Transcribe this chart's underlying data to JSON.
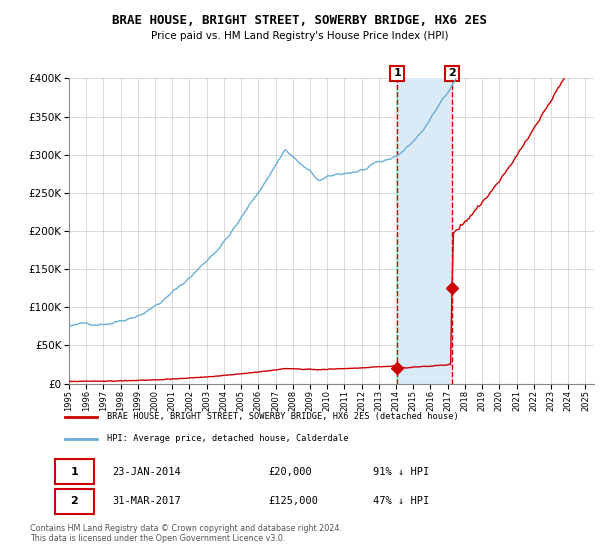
{
  "title": "BRAE HOUSE, BRIGHT STREET, SOWERBY BRIDGE, HX6 2ES",
  "subtitle": "Price paid vs. HM Land Registry's House Price Index (HPI)",
  "legend_line1": "BRAE HOUSE, BRIGHT STREET, SOWERBY BRIDGE, HX6 2ES (detached house)",
  "legend_line2": "HPI: Average price, detached house, Calderdale",
  "transaction1_date": "23-JAN-2014",
  "transaction1_price": "£20,000",
  "transaction1_hpi": "91% ↓ HPI",
  "transaction2_date": "31-MAR-2017",
  "transaction2_price": "£125,000",
  "transaction2_hpi": "47% ↓ HPI",
  "footer": "Contains HM Land Registry data © Crown copyright and database right 2024.\nThis data is licensed under the Open Government Licence v3.0.",
  "hpi_color": "#6baed6",
  "price_color": "#cc0000",
  "marker_color": "#cc0000",
  "vline_color": "#cc0000",
  "shade_color": "#dbeaf7",
  "ylim": [
    0,
    400000
  ],
  "ytick_step": 50000,
  "transaction1_x": 2014.06,
  "transaction1_y": 20000,
  "transaction2_x": 2017.25,
  "transaction2_y": 125000,
  "xlim_left": 1995.0,
  "xlim_right": 2025.5
}
